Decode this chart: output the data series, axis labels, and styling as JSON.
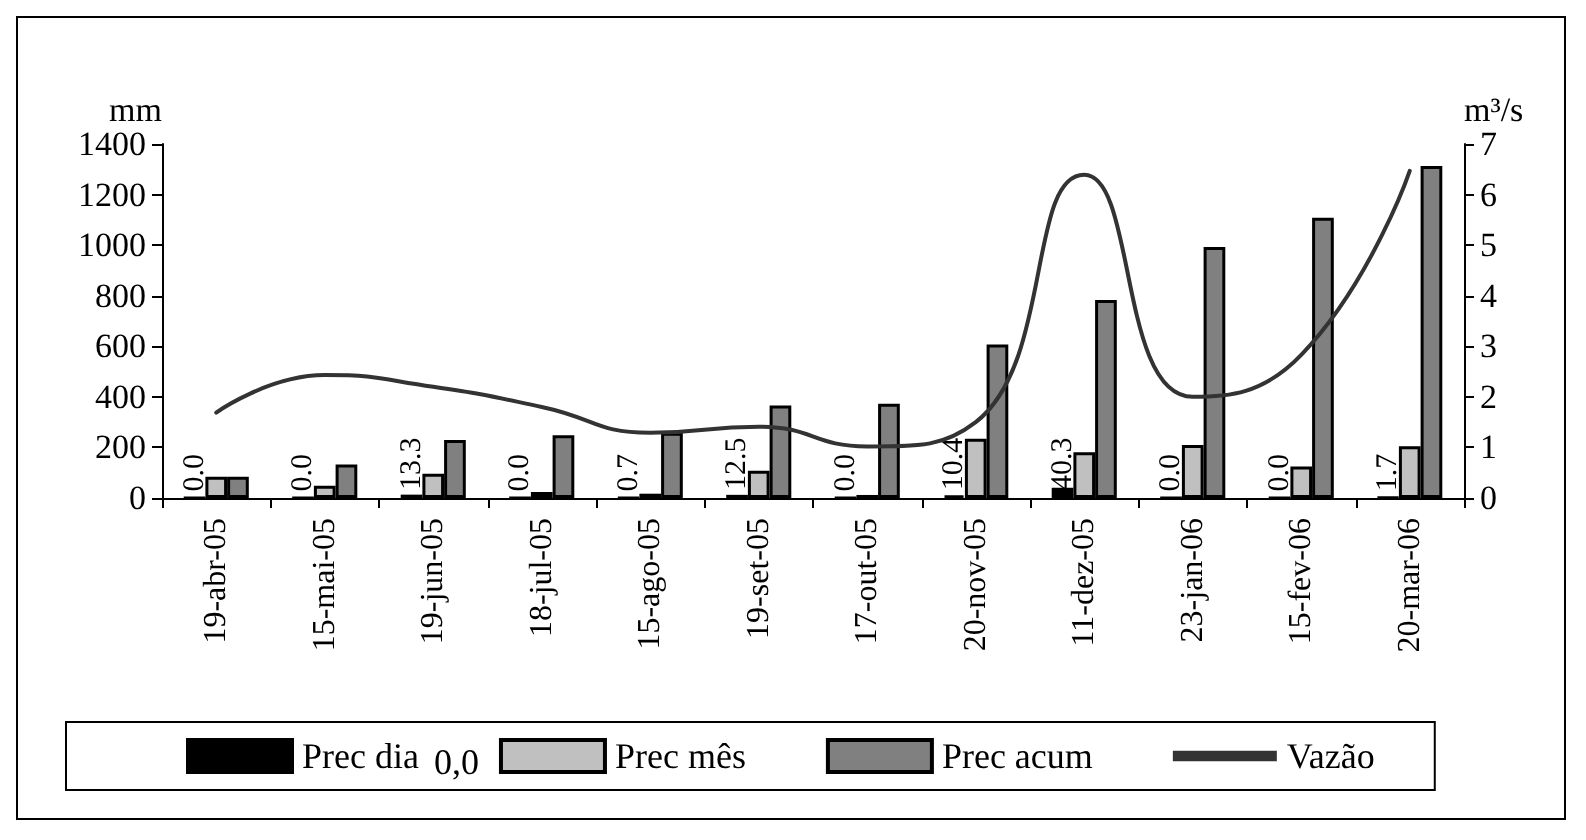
{
  "chart_data": {
    "type": "bar",
    "categories": [
      "19-abr-05",
      "15-mai-05",
      "19-jun-05",
      "18-jul-05",
      "15-ago-05",
      "19-set-05",
      "17-out-05",
      "20-nov-05",
      "11-dez-05",
      "23-jan-06",
      "15-fev-06",
      "20-mar-06"
    ],
    "ylabel": "mm",
    "y2label": "m³/s",
    "ylim": [
      0,
      1400
    ],
    "yticks": [
      0,
      200,
      400,
      600,
      800,
      1000,
      1200,
      1400
    ],
    "y2lim": [
      0,
      7
    ],
    "y2ticks": [
      0,
      1,
      2,
      3,
      4,
      5,
      6,
      7
    ],
    "series": [
      {
        "name": "Prec dia",
        "color": "#000000",
        "values": [
          0,
          0,
          13.3,
          0,
          0.7,
          12.5,
          0,
          10.4,
          40.3,
          0,
          0,
          1.7
        ],
        "value_labels": [
          "0.0",
          "0.0",
          "13.3",
          "0.0",
          "0.7",
          "12.5",
          "0.0",
          "10.4",
          "40.3",
          "0.0",
          "0.0",
          "1.7"
        ]
      },
      {
        "name": "Prec mês",
        "color": "#c0c0c0",
        "values": [
          84,
          48,
          96,
          24,
          17,
          108,
          12,
          234,
          181,
          210,
          125,
          205
        ]
      },
      {
        "name": "Prec acum",
        "color": "#808080",
        "values": [
          84,
          132,
          229,
          248,
          258,
          366,
          373,
          607,
          783,
          993,
          1108,
          1313
        ]
      },
      {
        "name": "Vazão",
        "type": "line",
        "axis": "y2",
        "color": "#333333",
        "values": [
          1.69,
          2.43,
          2.2,
          1.8,
          1.29,
          1.41,
          1.02,
          1.5,
          6.39,
          2.0,
          2.83,
          6.47
        ]
      }
    ],
    "annotations": [
      "0,0"
    ],
    "legend": "bottom",
    "grid": false,
    "marker": "none"
  }
}
